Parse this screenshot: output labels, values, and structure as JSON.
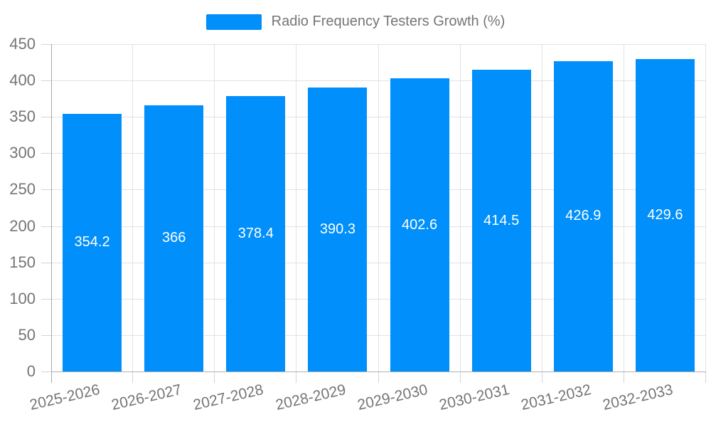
{
  "legend": {
    "label": "Radio Frequency Testers Growth (%)"
  },
  "colors": {
    "bar": "#008FFB",
    "grid": "#e2e2e2",
    "axis": "#a6a6a6",
    "tick": "#d4d4d4",
    "tick_label": "#757575",
    "bar_label": "#ffffff",
    "background": "#ffffff"
  },
  "chart_data": {
    "type": "bar",
    "title": "Radio Frequency Testers Growth (%)",
    "categories": [
      "2025-2026",
      "2026-2027",
      "2027-2028",
      "2028-2029",
      "2029-2030",
      "2030-2031",
      "2031-2032",
      "2032-2033"
    ],
    "series": [
      {
        "name": "Radio Frequency Testers Growth (%)",
        "values": [
          354.2,
          366,
          378.4,
          390.3,
          402.6,
          414.5,
          426.9,
          429.6
        ]
      }
    ],
    "bar_labels": [
      "354.2",
      "366",
      "378.4",
      "390.3",
      "402.6",
      "414.5",
      "426.9",
      "429.6"
    ],
    "xlabel": "",
    "ylabel": "",
    "ylim": [
      0,
      450
    ],
    "ytick_step": 50,
    "ytick_labels": [
      "0",
      "50",
      "100",
      "150",
      "200",
      "250",
      "300",
      "350",
      "400",
      "450"
    ],
    "grid": true,
    "legend_position": "top",
    "bar_label_position": "center"
  }
}
